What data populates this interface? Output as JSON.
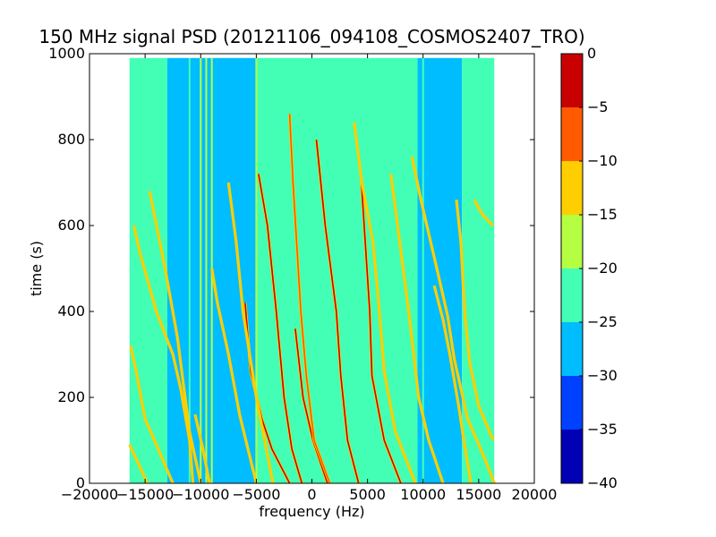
{
  "chart_data": {
    "type": "heatmap",
    "title": "150 MHz signal PSD (20121106_094108_COSMOS2407_TRO)",
    "xlabel": "frequency (Hz)",
    "ylabel": "time (s)",
    "xlim": [
      -20000,
      20000
    ],
    "ylim": [
      0,
      1000
    ],
    "xticks": [
      -20000,
      -15000,
      -10000,
      -5000,
      0,
      5000,
      10000,
      15000,
      20000
    ],
    "yticks": [
      0,
      200,
      400,
      600,
      800,
      1000
    ],
    "data_extent": {
      "x": [
        -16400,
        16400
      ],
      "y": [
        0,
        990
      ]
    },
    "colorbar": {
      "min": -40,
      "max": 0,
      "ticks": [
        0,
        -5,
        -10,
        -15,
        -20,
        -25,
        -30,
        -35,
        -40
      ],
      "bins": [
        {
          "from": -40,
          "to": -35,
          "color": "#0000b5"
        },
        {
          "from": -35,
          "to": -30,
          "color": "#0041ff"
        },
        {
          "from": -30,
          "to": -25,
          "color": "#00bdff"
        },
        {
          "from": -25,
          "to": -20,
          "color": "#42ffb5"
        },
        {
          "from": -20,
          "to": -15,
          "color": "#b5ff42"
        },
        {
          "from": -15,
          "to": -10,
          "color": "#ffce00"
        },
        {
          "from": -10,
          "to": -5,
          "color": "#ff5a00"
        },
        {
          "from": -5,
          "to": 0,
          "color": "#c80000"
        }
      ]
    },
    "background_bands": [
      {
        "x": [
          -16400,
          -13000
        ],
        "level": -22
      },
      {
        "x": [
          -13000,
          -5000
        ],
        "level": -27
      },
      {
        "x": [
          -5000,
          9500
        ],
        "level": -22
      },
      {
        "x": [
          9500,
          13500
        ],
        "level": -27
      },
      {
        "x": [
          13500,
          16400
        ],
        "level": -22
      }
    ],
    "vertical_lines": [
      {
        "x": -11000,
        "level": -22
      },
      {
        "x": -10000,
        "level": -18
      },
      {
        "x": -9500,
        "level": -18
      },
      {
        "x": -9000,
        "level": -18
      },
      {
        "x": -5000,
        "level": -18
      },
      {
        "x": 10000,
        "level": -22
      }
    ],
    "series": [
      {
        "level": -3,
        "points": [
          [
            -4800,
            720
          ],
          [
            -4000,
            600
          ],
          [
            -3200,
            400
          ],
          [
            -2500,
            200
          ],
          [
            -1800,
            80
          ],
          [
            -900,
            0
          ]
        ]
      },
      {
        "level": -3,
        "points": [
          [
            400,
            800
          ],
          [
            1200,
            600
          ],
          [
            2200,
            400
          ],
          [
            2600,
            250
          ],
          [
            3200,
            100
          ],
          [
            4200,
            0
          ]
        ]
      },
      {
        "level": -5,
        "points": [
          [
            4400,
            720
          ],
          [
            4700,
            600
          ],
          [
            5200,
            400
          ],
          [
            5400,
            250
          ],
          [
            6500,
            100
          ],
          [
            8000,
            0
          ]
        ]
      },
      {
        "level": -3,
        "points": [
          [
            -6000,
            420
          ],
          [
            -5500,
            260
          ],
          [
            -4500,
            150
          ],
          [
            -3600,
            80
          ],
          [
            -2000,
            0
          ]
        ]
      },
      {
        "level": -3,
        "points": [
          [
            -1500,
            360
          ],
          [
            -800,
            200
          ],
          [
            100,
            100
          ],
          [
            1400,
            0
          ]
        ]
      },
      {
        "level": -10,
        "points": [
          [
            -2000,
            860
          ],
          [
            -1700,
            700
          ],
          [
            -1000,
            400
          ],
          [
            -500,
            250
          ],
          [
            200,
            100
          ],
          [
            1600,
            0
          ]
        ]
      },
      {
        "level": -12,
        "points": [
          [
            -7500,
            700
          ],
          [
            -6800,
            560
          ],
          [
            -6200,
            400
          ],
          [
            -5000,
            200
          ],
          [
            -3500,
            0
          ]
        ]
      },
      {
        "level": -12,
        "points": [
          [
            3800,
            840
          ],
          [
            4500,
            700
          ],
          [
            5500,
            560
          ],
          [
            6000,
            420
          ],
          [
            6500,
            260
          ],
          [
            7500,
            120
          ],
          [
            9300,
            0
          ]
        ]
      },
      {
        "level": -12,
        "points": [
          [
            7100,
            720
          ],
          [
            7900,
            560
          ],
          [
            8700,
            400
          ],
          [
            9600,
            200
          ],
          [
            10500,
            100
          ],
          [
            11800,
            0
          ]
        ]
      },
      {
        "level": -12,
        "points": [
          [
            9000,
            760
          ],
          [
            9800,
            660
          ],
          [
            10700,
            560
          ],
          [
            11500,
            470
          ],
          [
            12200,
            390
          ],
          [
            12800,
            290
          ],
          [
            14000,
            150
          ],
          [
            15500,
            60
          ],
          [
            16400,
            0
          ]
        ]
      },
      {
        "level": -12,
        "points": [
          [
            11000,
            460
          ],
          [
            11800,
            380
          ],
          [
            12400,
            300
          ],
          [
            13200,
            180
          ],
          [
            13600,
            110
          ],
          [
            14300,
            0
          ]
        ]
      },
      {
        "level": -12,
        "points": [
          [
            13000,
            660
          ],
          [
            13400,
            560
          ],
          [
            13600,
            460
          ],
          [
            13800,
            380
          ],
          [
            14200,
            280
          ],
          [
            15000,
            180
          ],
          [
            16300,
            100
          ]
        ]
      },
      {
        "level": -12,
        "points": [
          [
            -16000,
            600
          ],
          [
            -15500,
            540
          ],
          [
            -14000,
            400
          ],
          [
            -12500,
            300
          ],
          [
            -11800,
            220
          ],
          [
            -11000,
            100
          ],
          [
            -10700,
            0
          ]
        ]
      },
      {
        "level": -12,
        "points": [
          [
            -14600,
            680
          ],
          [
            -13200,
            500
          ],
          [
            -12100,
            340
          ],
          [
            -11500,
            220
          ],
          [
            -11000,
            120
          ],
          [
            -10000,
            0
          ]
        ]
      },
      {
        "level": -12,
        "points": [
          [
            -16300,
            320
          ],
          [
            -15800,
            260
          ],
          [
            -15000,
            150
          ],
          [
            -13500,
            60
          ],
          [
            -12500,
            0
          ]
        ]
      },
      {
        "level": -12,
        "points": [
          [
            -9000,
            500
          ],
          [
            -8500,
            420
          ],
          [
            -7500,
            300
          ],
          [
            -6500,
            160
          ],
          [
            -5000,
            0
          ]
        ]
      },
      {
        "level": -12,
        "points": [
          [
            -10500,
            160
          ],
          [
            -9800,
            80
          ],
          [
            -9200,
            0
          ]
        ]
      },
      {
        "level": -12,
        "points": [
          [
            -16400,
            90
          ],
          [
            -15500,
            40
          ],
          [
            -14800,
            0
          ]
        ]
      },
      {
        "level": -12,
        "points": [
          [
            14600,
            660
          ],
          [
            15000,
            640
          ],
          [
            15500,
            620
          ],
          [
            16300,
            600
          ]
        ]
      }
    ]
  }
}
